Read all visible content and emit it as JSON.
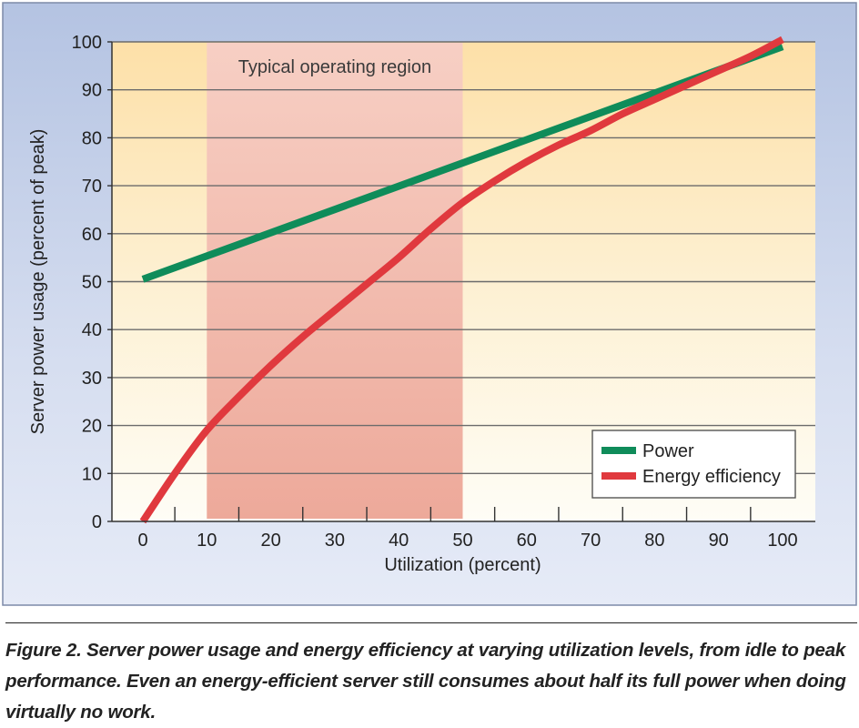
{
  "chart_data": {
    "type": "line",
    "title": "",
    "xlabel": "Utilization (percent)",
    "ylabel": "Server power usage (percent of peak)",
    "xlim": [
      0,
      100
    ],
    "ylim": [
      0,
      100
    ],
    "x_ticks": [
      0,
      10,
      20,
      30,
      40,
      50,
      60,
      70,
      80,
      90,
      100
    ],
    "y_ticks": [
      0,
      10,
      20,
      30,
      40,
      50,
      60,
      70,
      80,
      90,
      100
    ],
    "grid": "horizontal",
    "shaded_region": {
      "label": "Typical operating region",
      "x_start": 10,
      "x_end": 50
    },
    "series": [
      {
        "name": "Power",
        "color": "#0f8c5a",
        "x": [
          0,
          100
        ],
        "y": [
          50.5,
          99
        ]
      },
      {
        "name": "Energy efficiency",
        "color": "#e0393e",
        "x": [
          0,
          5,
          10,
          15,
          20,
          25,
          30,
          35,
          40,
          45,
          50,
          55,
          60,
          65,
          70,
          75,
          80,
          85,
          90,
          95,
          100
        ],
        "y": [
          0,
          10,
          19,
          26,
          32.5,
          38.5,
          44,
          49.5,
          55,
          61,
          66.5,
          71,
          75,
          78.5,
          81.5,
          85,
          88,
          91,
          94,
          97,
          100.5
        ]
      }
    ],
    "legend_position": "bottom-right"
  },
  "caption": "Figure 2. Server power usage and energy efficiency at varying utilization levels, from idle to peak performance. Even an energy-efficient server still consumes about half its full power when doing virtually no work."
}
